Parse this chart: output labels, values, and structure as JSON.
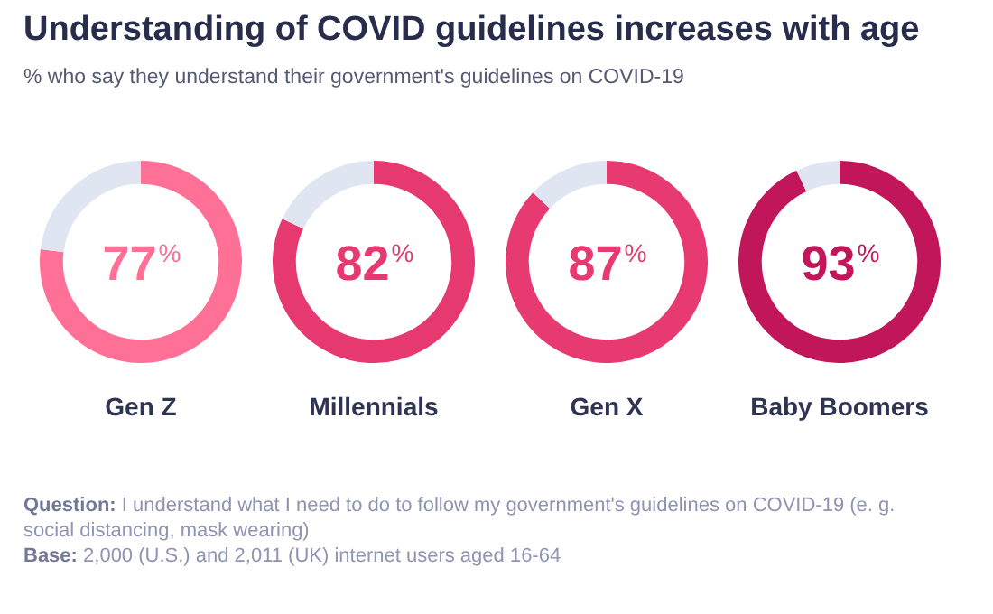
{
  "chart_data": [
    {
      "type": "donut",
      "title": "Understanding of COVID guidelines increases with age",
      "subtitle": "% who say they understand their government's guidelines on COVID-19",
      "xlabel": "Gen Z",
      "categories": [
        null,
        null
      ],
      "values": [
        77,
        23
      ],
      "colors": [
        "#ff7096",
        "#dfe6f2"
      ],
      "value_labels": [
        "77%",
        null
      ]
    },
    {
      "type": "donut",
      "xlabel": "Millennials",
      "categories": [
        null,
        null
      ],
      "values": [
        82,
        18
      ],
      "colors": [
        "#e6396f",
        "#dfe6f2"
      ],
      "value_labels": [
        "82%",
        null
      ]
    },
    {
      "type": "donut",
      "xlabel": "Gen X",
      "categories": [
        null,
        null
      ],
      "values": [
        87,
        13
      ],
      "colors": [
        "#e63a70",
        "#dfe6f2"
      ],
      "value_labels": [
        "87%",
        null
      ]
    },
    {
      "type": "donut",
      "xlabel": "Baby Boomers",
      "categories": [
        null,
        null
      ],
      "values": [
        93,
        7
      ],
      "colors": [
        "#c1165a",
        "#dfe6f2"
      ],
      "value_labels": [
        "93%",
        null
      ],
      "annotations": [
        "Question: I understand what I need to do to follow my government's guidelines on COVID-19 (e. g. social distancing, mask wearing)",
        "Base: 2,000 (U.S.) and 2,011 (UK) internet users aged 16-64"
      ]
    }
  ]
}
